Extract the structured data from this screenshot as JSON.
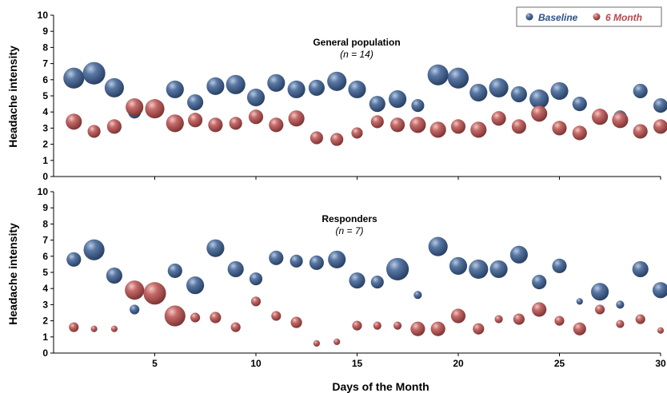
{
  "chart_data": {
    "type": "scatter",
    "xlabel": "Days of the Month",
    "ylabel": "Headache intensity",
    "xlim": [
      0,
      30
    ],
    "xticks": [
      5,
      10,
      15,
      20,
      25,
      30
    ],
    "ylim": [
      0,
      10
    ],
    "yticks": [
      0,
      1,
      2,
      3,
      4,
      5,
      6,
      7,
      8,
      9,
      10
    ],
    "legend": {
      "position": "top-right",
      "entries": [
        "Baseline",
        "6 Month"
      ]
    },
    "colors": {
      "baseline": "#3e5f8a",
      "month6": "#b85c5c",
      "legend_baseline_text": "#2e4f86",
      "legend_month6_text": "#b5474d"
    },
    "panels": [
      {
        "title": "General population",
        "subtitle": "(n = 14)",
        "series": [
          {
            "name": "Baseline",
            "points": [
              {
                "x": 1,
                "y": 6.1,
                "r": 13
              },
              {
                "x": 2,
                "y": 6.4,
                "r": 14
              },
              {
                "x": 3,
                "y": 5.5,
                "r": 12
              },
              {
                "x": 4,
                "y": 4.0,
                "r": 8
              },
              {
                "x": 5,
                "y": 4.2,
                "r": 10
              },
              {
                "x": 6,
                "y": 5.4,
                "r": 11
              },
              {
                "x": 7,
                "y": 4.6,
                "r": 10
              },
              {
                "x": 8,
                "y": 5.6,
                "r": 11
              },
              {
                "x": 9,
                "y": 5.7,
                "r": 12
              },
              {
                "x": 10,
                "y": 4.9,
                "r": 11
              },
              {
                "x": 11,
                "y": 5.8,
                "r": 11
              },
              {
                "x": 12,
                "y": 5.4,
                "r": 11
              },
              {
                "x": 13,
                "y": 5.5,
                "r": 10
              },
              {
                "x": 14,
                "y": 5.9,
                "r": 12
              },
              {
                "x": 15,
                "y": 5.4,
                "r": 11
              },
              {
                "x": 16,
                "y": 4.5,
                "r": 10
              },
              {
                "x": 17,
                "y": 4.8,
                "r": 11
              },
              {
                "x": 18,
                "y": 4.4,
                "r": 8
              },
              {
                "x": 19,
                "y": 6.3,
                "r": 13
              },
              {
                "x": 20,
                "y": 6.1,
                "r": 13
              },
              {
                "x": 21,
                "y": 5.2,
                "r": 11
              },
              {
                "x": 22,
                "y": 5.5,
                "r": 12
              },
              {
                "x": 23,
                "y": 5.1,
                "r": 10
              },
              {
                "x": 24,
                "y": 4.8,
                "r": 12
              },
              {
                "x": 25,
                "y": 5.3,
                "r": 11
              },
              {
                "x": 26,
                "y": 4.5,
                "r": 9
              },
              {
                "x": 27,
                "y": 3.8,
                "r": 8
              },
              {
                "x": 28,
                "y": 3.7,
                "r": 8
              },
              {
                "x": 29,
                "y": 5.3,
                "r": 9
              },
              {
                "x": 30,
                "y": 4.4,
                "r": 9
              }
            ]
          },
          {
            "name": "6 Month",
            "points": [
              {
                "x": 1,
                "y": 3.4,
                "r": 10
              },
              {
                "x": 2,
                "y": 2.8,
                "r": 8
              },
              {
                "x": 3,
                "y": 3.1,
                "r": 9
              },
              {
                "x": 4,
                "y": 4.3,
                "r": 11
              },
              {
                "x": 5,
                "y": 4.2,
                "r": 12
              },
              {
                "x": 6,
                "y": 3.3,
                "r": 11
              },
              {
                "x": 7,
                "y": 3.5,
                "r": 9
              },
              {
                "x": 8,
                "y": 3.2,
                "r": 9
              },
              {
                "x": 9,
                "y": 3.3,
                "r": 8
              },
              {
                "x": 10,
                "y": 3.7,
                "r": 9
              },
              {
                "x": 11,
                "y": 3.2,
                "r": 9
              },
              {
                "x": 12,
                "y": 3.6,
                "r": 10
              },
              {
                "x": 13,
                "y": 2.4,
                "r": 8
              },
              {
                "x": 14,
                "y": 2.3,
                "r": 8
              },
              {
                "x": 15,
                "y": 2.7,
                "r": 7
              },
              {
                "x": 16,
                "y": 3.4,
                "r": 8
              },
              {
                "x": 17,
                "y": 3.2,
                "r": 9
              },
              {
                "x": 18,
                "y": 3.2,
                "r": 10
              },
              {
                "x": 19,
                "y": 2.9,
                "r": 10
              },
              {
                "x": 20,
                "y": 3.1,
                "r": 9
              },
              {
                "x": 21,
                "y": 2.9,
                "r": 10
              },
              {
                "x": 22,
                "y": 3.6,
                "r": 9
              },
              {
                "x": 23,
                "y": 3.1,
                "r": 9
              },
              {
                "x": 24,
                "y": 3.9,
                "r": 10
              },
              {
                "x": 25,
                "y": 3.0,
                "r": 9
              },
              {
                "x": 26,
                "y": 2.7,
                "r": 9
              },
              {
                "x": 27,
                "y": 3.7,
                "r": 10
              },
              {
                "x": 28,
                "y": 3.5,
                "r": 10
              },
              {
                "x": 29,
                "y": 2.8,
                "r": 9
              },
              {
                "x": 30,
                "y": 3.1,
                "r": 9
              }
            ]
          }
        ]
      },
      {
        "title": "Responders",
        "subtitle": "(n = 7)",
        "series": [
          {
            "name": "Baseline",
            "points": [
              {
                "x": 1,
                "y": 5.8,
                "r": 9
              },
              {
                "x": 2,
                "y": 6.4,
                "r": 13
              },
              {
                "x": 3,
                "y": 4.8,
                "r": 10
              },
              {
                "x": 4,
                "y": 2.7,
                "r": 6
              },
              {
                "x": 5,
                "y": 3.7,
                "r": 10
              },
              {
                "x": 6,
                "y": 5.1,
                "r": 9
              },
              {
                "x": 7,
                "y": 4.2,
                "r": 11
              },
              {
                "x": 8,
                "y": 6.5,
                "r": 11
              },
              {
                "x": 9,
                "y": 5.2,
                "r": 10
              },
              {
                "x": 10,
                "y": 4.6,
                "r": 8
              },
              {
                "x": 11,
                "y": 5.9,
                "r": 9
              },
              {
                "x": 12,
                "y": 5.7,
                "r": 8
              },
              {
                "x": 13,
                "y": 5.6,
                "r": 9
              },
              {
                "x": 14,
                "y": 5.8,
                "r": 11
              },
              {
                "x": 15,
                "y": 4.5,
                "r": 10
              },
              {
                "x": 16,
                "y": 4.4,
                "r": 8
              },
              {
                "x": 17,
                "y": 5.2,
                "r": 14
              },
              {
                "x": 18,
                "y": 3.6,
                "r": 5
              },
              {
                "x": 19,
                "y": 6.6,
                "r": 12
              },
              {
                "x": 20,
                "y": 5.4,
                "r": 11
              },
              {
                "x": 21,
                "y": 5.2,
                "r": 12
              },
              {
                "x": 22,
                "y": 5.2,
                "r": 11
              },
              {
                "x": 23,
                "y": 6.1,
                "r": 11
              },
              {
                "x": 24,
                "y": 4.4,
                "r": 9
              },
              {
                "x": 25,
                "y": 5.4,
                "r": 9
              },
              {
                "x": 26,
                "y": 3.2,
                "r": 4
              },
              {
                "x": 27,
                "y": 3.8,
                "r": 11
              },
              {
                "x": 28,
                "y": 3.0,
                "r": 5
              },
              {
                "x": 29,
                "y": 5.2,
                "r": 10
              },
              {
                "x": 30,
                "y": 3.9,
                "r": 10
              }
            ]
          },
          {
            "name": "6 Month",
            "points": [
              {
                "x": 1,
                "y": 1.6,
                "r": 6
              },
              {
                "x": 2,
                "y": 1.5,
                "r": 4
              },
              {
                "x": 3,
                "y": 1.5,
                "r": 4
              },
              {
                "x": 4,
                "y": 3.9,
                "r": 12
              },
              {
                "x": 5,
                "y": 3.7,
                "r": 14
              },
              {
                "x": 6,
                "y": 2.3,
                "r": 13
              },
              {
                "x": 7,
                "y": 2.2,
                "r": 6
              },
              {
                "x": 8,
                "y": 2.2,
                "r": 7
              },
              {
                "x": 9,
                "y": 1.6,
                "r": 6
              },
              {
                "x": 10,
                "y": 3.2,
                "r": 6
              },
              {
                "x": 11,
                "y": 2.3,
                "r": 6
              },
              {
                "x": 12,
                "y": 1.9,
                "r": 7
              },
              {
                "x": 13,
                "y": 0.6,
                "r": 4
              },
              {
                "x": 14,
                "y": 0.7,
                "r": 4
              },
              {
                "x": 15,
                "y": 1.7,
                "r": 6
              },
              {
                "x": 16,
                "y": 1.7,
                "r": 5
              },
              {
                "x": 17,
                "y": 1.7,
                "r": 5
              },
              {
                "x": 18,
                "y": 1.5,
                "r": 9
              },
              {
                "x": 19,
                "y": 1.5,
                "r": 9
              },
              {
                "x": 20,
                "y": 2.3,
                "r": 9
              },
              {
                "x": 21,
                "y": 1.5,
                "r": 7
              },
              {
                "x": 22,
                "y": 2.1,
                "r": 5
              },
              {
                "x": 23,
                "y": 2.1,
                "r": 7
              },
              {
                "x": 24,
                "y": 2.7,
                "r": 9
              },
              {
                "x": 25,
                "y": 2.0,
                "r": 6
              },
              {
                "x": 26,
                "y": 1.5,
                "r": 8
              },
              {
                "x": 27,
                "y": 2.7,
                "r": 6
              },
              {
                "x": 28,
                "y": 1.8,
                "r": 5
              },
              {
                "x": 29,
                "y": 2.1,
                "r": 6
              },
              {
                "x": 30,
                "y": 1.4,
                "r": 4
              }
            ]
          }
        ]
      }
    ]
  }
}
